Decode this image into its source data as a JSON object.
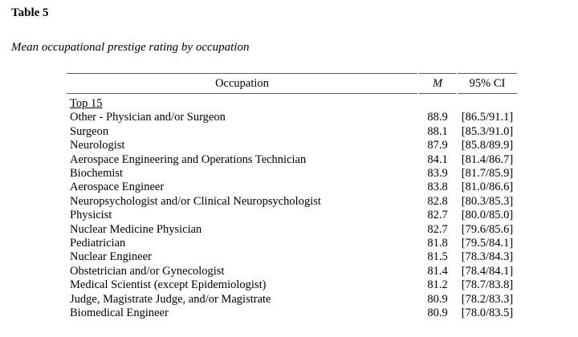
{
  "header": {
    "table_label": "Table 5",
    "table_caption": "Mean occupational prestige rating by occupation"
  },
  "table": {
    "columns": [
      "Occupation",
      "M",
      "95% CI"
    ],
    "section_label": "Top 15",
    "rows": [
      {
        "occupation": "Other - Physician and/or Surgeon",
        "m": "88.9",
        "ci": "[86.5/91.1]"
      },
      {
        "occupation": "Surgeon",
        "m": "88.1",
        "ci": "[85.3/91.0]"
      },
      {
        "occupation": "Neurologist",
        "m": "87.9",
        "ci": "[85.8/89.9]"
      },
      {
        "occupation": "Aerospace Engineering and Operations Technician",
        "m": "84.1",
        "ci": "[81.4/86.7]"
      },
      {
        "occupation": "Biochemist",
        "m": "83.9",
        "ci": "[81.7/85.9]"
      },
      {
        "occupation": "Aerospace Engineer",
        "m": "83.8",
        "ci": "[81.0/86.6]"
      },
      {
        "occupation": "Neuropsychologist and/or Clinical Neuropsychologist",
        "m": "82.8",
        "ci": "[80.3/85.3]"
      },
      {
        "occupation": "Physicist",
        "m": "82.7",
        "ci": "[80.0/85.0]"
      },
      {
        "occupation": "Nuclear Medicine Physician",
        "m": "82.7",
        "ci": "[79.6/85.6]"
      },
      {
        "occupation": "Pediatrician",
        "m": "81.8",
        "ci": "[79.5/84.1]"
      },
      {
        "occupation": "Nuclear Engineer",
        "m": "81.5",
        "ci": "[78.3/84.3]"
      },
      {
        "occupation": "Obstetrician and/or Gynecologist",
        "m": "81.4",
        "ci": "[78.4/84.1]"
      },
      {
        "occupation": "Medical Scientist (except Epidemiologist)",
        "m": "81.2",
        "ci": "[78.7/83.8]"
      },
      {
        "occupation": "Judge, Magistrate Judge, and/or Magistrate",
        "m": "80.9",
        "ci": "[78.2/83.3]"
      },
      {
        "occupation": "Biomedical Engineer",
        "m": "80.9",
        "ci": "[78.0/83.5]"
      }
    ],
    "colors": {
      "background": "#ffffff",
      "text": "#000000",
      "rule": "#5a5a5a"
    }
  }
}
